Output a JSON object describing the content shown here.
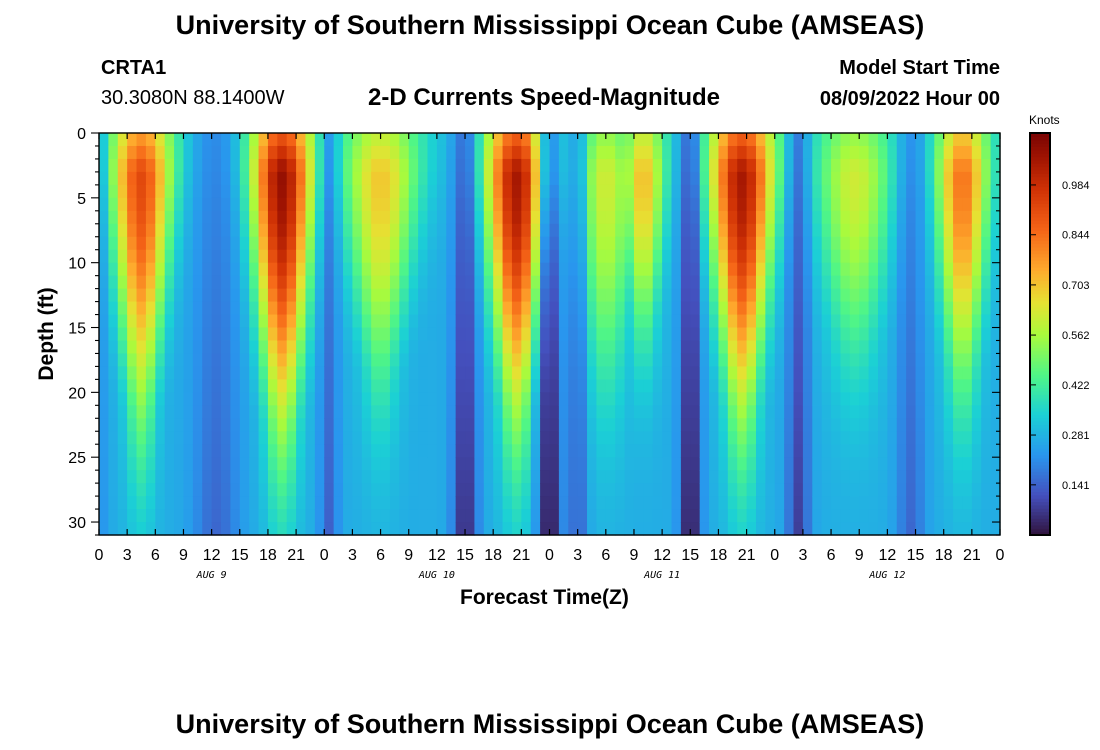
{
  "header": {
    "title": "University of Southern Mississippi Ocean Cube (AMSEAS)",
    "station_id": "CRTA1",
    "station_coords": "30.3080N  88.1400W",
    "subtitle": "2-D Currents Speed-Magnitude",
    "model_start_label": "Model Start Time",
    "model_start_value": "08/09/2022 Hour 00"
  },
  "footer": {
    "title": "University of Southern Mississippi Ocean Cube (AMSEAS)"
  },
  "chart_data": {
    "type": "heatmap",
    "title": "2-D Currents Speed-Magnitude",
    "xlabel": "Forecast Time(Z)",
    "ylabel": "Depth (ft)",
    "x_ticks": [
      "0",
      "3",
      "6",
      "9",
      "12",
      "15",
      "18",
      "21",
      "0",
      "3",
      "6",
      "9",
      "12",
      "15",
      "18",
      "21",
      "0",
      "3",
      "6",
      "9",
      "12",
      "15",
      "18",
      "21",
      "0",
      "3",
      "6",
      "9",
      "12",
      "15",
      "18",
      "21",
      "0"
    ],
    "x_hours_range": [
      0,
      96
    ],
    "day_labels": [
      {
        "text": "AUG 9",
        "hour": 12
      },
      {
        "text": "AUG 10",
        "hour": 36
      },
      {
        "text": "AUG 11",
        "hour": 60
      },
      {
        "text": "AUG 12",
        "hour": 84
      }
    ],
    "y_ticks": [
      0,
      5,
      10,
      15,
      20,
      25,
      30
    ],
    "ylim": [
      0,
      31
    ],
    "y_inverted": true,
    "colorbar": {
      "label": "Knots",
      "ticks": [
        "0.984",
        "0.844",
        "0.703",
        "0.562",
        "0.422",
        "0.281",
        "0.141"
      ],
      "tick_values": [
        0.984,
        0.844,
        0.703,
        0.562,
        0.422,
        0.281,
        0.141
      ],
      "range": [
        0,
        1.13
      ]
    },
    "peaks": [
      {
        "hour": 4.5,
        "speed": 0.92,
        "shallow_width_h": 3.6,
        "deep_width_h": 1.6,
        "reach_ft": 21
      },
      {
        "hour": 19.5,
        "speed": 1.08,
        "shallow_width_h": 3.6,
        "deep_width_h": 1.8,
        "reach_ft": 22
      },
      {
        "hour": 30.0,
        "speed": 0.7,
        "shallow_width_h": 4.5,
        "deep_width_h": 2.0,
        "reach_ft": 18
      },
      {
        "hour": 44.5,
        "speed": 1.05,
        "shallow_width_h": 3.6,
        "deep_width_h": 1.8,
        "reach_ft": 21
      },
      {
        "hour": 54.0,
        "speed": 0.62,
        "shallow_width_h": 3.5,
        "deep_width_h": 2.4,
        "reach_ft": 18
      },
      {
        "hour": 58.0,
        "speed": 0.72,
        "shallow_width_h": 2.5,
        "deep_width_h": 1.6,
        "reach_ft": 14
      },
      {
        "hour": 68.5,
        "speed": 1.05,
        "shallow_width_h": 3.8,
        "deep_width_h": 1.8,
        "reach_ft": 21
      },
      {
        "hour": 80.5,
        "speed": 0.62,
        "shallow_width_h": 4.5,
        "deep_width_h": 2.8,
        "reach_ft": 16
      },
      {
        "hour": 92.0,
        "speed": 0.84,
        "shallow_width_h": 3.0,
        "deep_width_h": 1.8,
        "reach_ft": 18
      }
    ],
    "lows": [
      {
        "hour": 0.0,
        "speed": 0.22,
        "width_h": 1.0
      },
      {
        "hour": 12.5,
        "speed": 0.15,
        "width_h": 2.5
      },
      {
        "hour": 24.5,
        "speed": 0.14,
        "width_h": 1.0
      },
      {
        "hour": 39.0,
        "speed": 0.04,
        "width_h": 1.3
      },
      {
        "hour": 48.0,
        "speed": 0.0,
        "width_h": 1.2
      },
      {
        "hour": 51.0,
        "speed": 0.14,
        "width_h": 1.0
      },
      {
        "hour": 63.0,
        "speed": 0.0,
        "width_h": 1.1
      },
      {
        "hour": 74.5,
        "speed": 0.08,
        "width_h": 1.2
      },
      {
        "hour": 86.5,
        "speed": 0.15,
        "width_h": 1.5
      }
    ],
    "background_speed": 0.27
  }
}
